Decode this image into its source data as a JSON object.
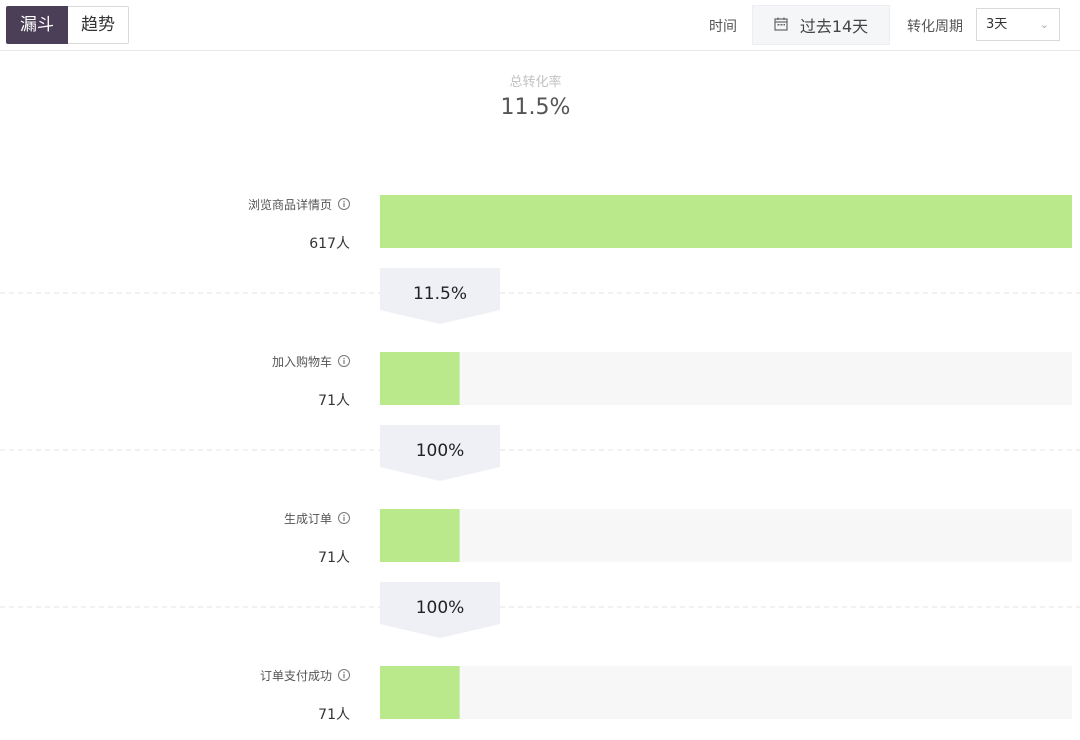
{
  "header": {
    "tabs": [
      {
        "label": "漏斗",
        "active": true
      },
      {
        "label": "趋势",
        "active": false
      }
    ],
    "time_label": "时间",
    "date_range": "过去14天",
    "cycle_label": "转化周期",
    "cycle_value": "3天"
  },
  "summary": {
    "title": "总转化率",
    "value": "11.5%"
  },
  "colors": {
    "bar": "#b9e98a",
    "track": "#f7f7f7",
    "connector": "#eef0f6",
    "active_tab": "#4b3f58"
  },
  "chart_data": {
    "type": "bar",
    "orientation": "horizontal-funnel",
    "categories": [
      "浏览商品详情页",
      "加入购物车",
      "生成订单",
      "订单支付成功"
    ],
    "values": [
      617,
      71,
      71,
      71
    ],
    "value_labels": [
      "617人",
      "71人",
      "71人",
      "71人"
    ],
    "conversion_rates": [
      "11.5%",
      "100%",
      "100%"
    ],
    "xlim": [
      0,
      617
    ]
  }
}
